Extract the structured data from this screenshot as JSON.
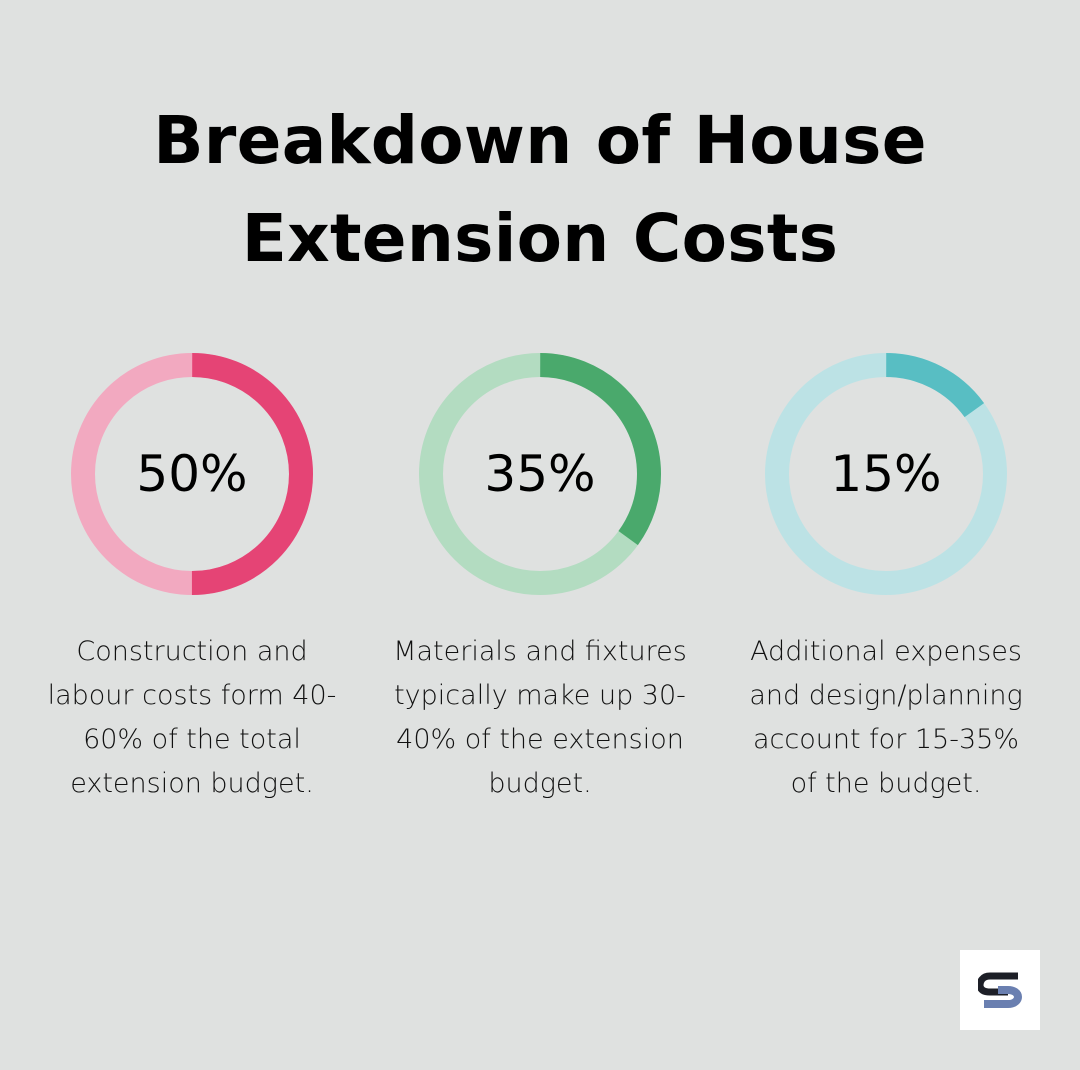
{
  "chart_data": {
    "type": "pie",
    "title_lines": [
      "Breakdown of House",
      "Extension Costs"
    ],
    "items": [
      {
        "label": "50%",
        "value": 50,
        "description": "Construction and labour costs form 40-60% of the total extension budget.",
        "color": "#e54475",
        "track_color": "#f2a9c0"
      },
      {
        "label": "35%",
        "value": 35,
        "description": "Materials and fixtures typically make up 30-40% of the extension budget.",
        "color": "#4aa96c",
        "track_color": "#b3dcc1"
      },
      {
        "label": "15%",
        "value": 15,
        "description": "Additional expenses and design/planning account for 15-35% of the budget.",
        "color": "#58bec3",
        "track_color": "#bce2e5"
      }
    ]
  },
  "logo": {
    "icon": "brand-s-logo-icon",
    "primary_color": "#1d1f27",
    "secondary_color": "#6a7fb0"
  }
}
